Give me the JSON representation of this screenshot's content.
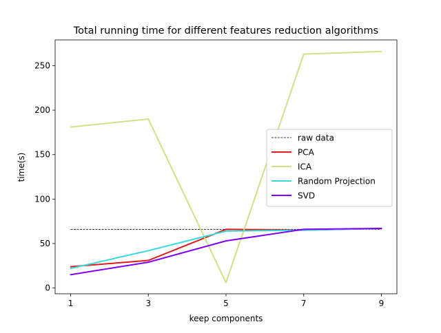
{
  "chart_data": {
    "type": "line",
    "title": "Total running time for different features reduction algorithms",
    "xlabel": "keep components",
    "ylabel": "time(s)",
    "x": [
      1,
      3,
      5,
      7,
      9
    ],
    "xlim": [
      0.6,
      9.4
    ],
    "ylim": [
      -6.5,
      279
    ],
    "xticks": [
      1,
      3,
      5,
      7,
      9
    ],
    "yticks": [
      0,
      50,
      100,
      150,
      200,
      250
    ],
    "grid": false,
    "legend_position": "center-right",
    "series": [
      {
        "name": "raw data",
        "values": [
          66,
          66,
          66,
          66,
          66
        ],
        "color": "#000000",
        "style": "dashed"
      },
      {
        "name": "PCA",
        "values": [
          24,
          31,
          66,
          65,
          67
        ],
        "color": "#e41a1c",
        "style": "solid"
      },
      {
        "name": "ICA",
        "values": [
          181,
          190,
          6,
          263,
          266
        ],
        "color": "#cfe187",
        "style": "solid"
      },
      {
        "name": "Random Projection",
        "values": [
          22,
          42,
          64,
          65,
          67
        ],
        "color": "#3ad9d9",
        "style": "solid"
      },
      {
        "name": "SVD",
        "values": [
          15,
          29,
          53,
          66,
          67
        ],
        "color": "#7f00ff",
        "style": "solid"
      }
    ]
  }
}
